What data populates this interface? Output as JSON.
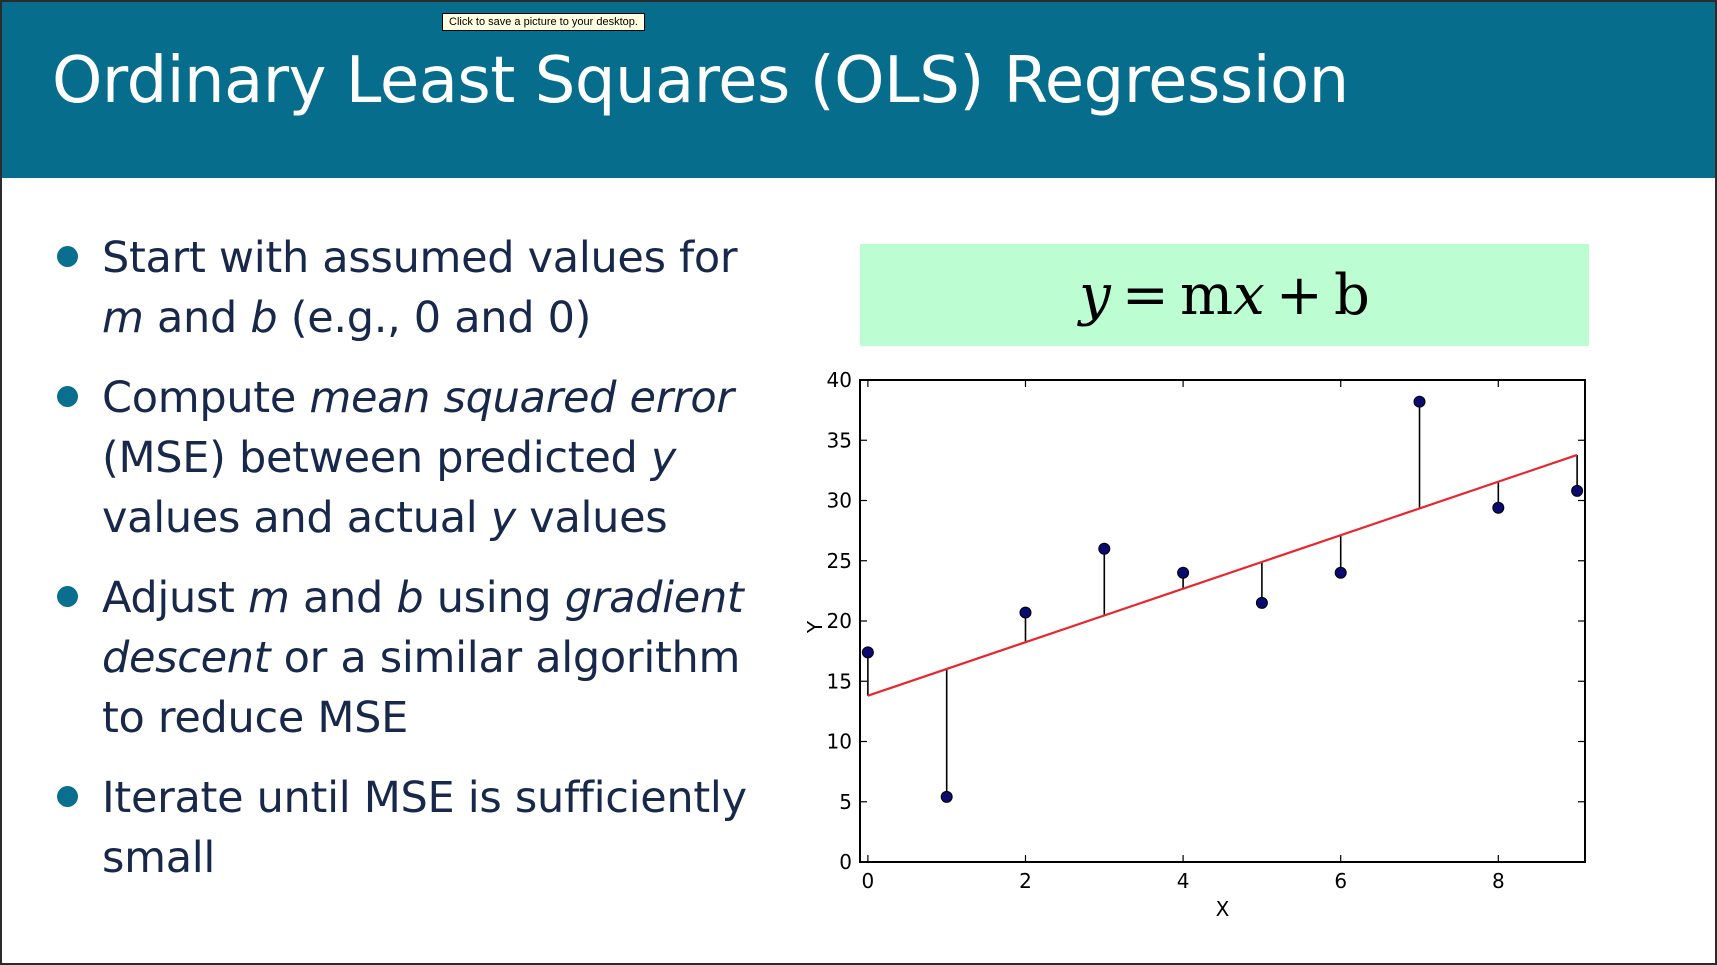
{
  "tooltip": "Click to save a picture to your desktop.",
  "slide": {
    "title": "Ordinary Least Squares (OLS) Regression",
    "formula": "y = mx + b",
    "bullets": [
      [
        {
          "t": "Start with assumed values for "
        },
        {
          "t": "m",
          "i": true
        },
        {
          "t": " and "
        },
        {
          "t": "b",
          "i": true
        },
        {
          "t": " (e.g., 0 and 0)"
        }
      ],
      [
        {
          "t": "Compute "
        },
        {
          "t": "mean squared error",
          "i": true
        },
        {
          "t": " (MSE) between predicted "
        },
        {
          "t": "y",
          "i": true
        },
        {
          "t": " values and actual "
        },
        {
          "t": "y",
          "i": true
        },
        {
          "t": " values"
        }
      ],
      [
        {
          "t": "Adjust "
        },
        {
          "t": "m",
          "i": true
        },
        {
          "t": " and "
        },
        {
          "t": "b",
          "i": true
        },
        {
          "t": " using "
        },
        {
          "t": "gradient descent",
          "i": true
        },
        {
          "t": " or a similar algorithm to reduce MSE"
        }
      ],
      [
        {
          "t": "Iterate until MSE is sufficiently small"
        }
      ]
    ]
  },
  "colors": {
    "title_bar": "#066d8c",
    "bullet": "#0a6f8e",
    "formula_bg": "#bcfdd2",
    "fit_line": "#e8262e",
    "points": "#0a0a70"
  },
  "chart_data": {
    "type": "scatter",
    "title": "",
    "xlabel": "X",
    "ylabel": "Y",
    "xlim": [
      -0.1,
      9.1
    ],
    "ylim": [
      0,
      40
    ],
    "xticks": [
      0,
      2,
      4,
      6,
      8
    ],
    "yticks": [
      0,
      5,
      10,
      15,
      20,
      25,
      30,
      35,
      40
    ],
    "grid": false,
    "series": [
      {
        "x": [
          0,
          1,
          2,
          3,
          4,
          5,
          6,
          7,
          8,
          9
        ],
        "y": [
          17.4,
          5.4,
          20.7,
          26.0,
          24.0,
          21.5,
          24.0,
          38.2,
          29.4,
          30.8
        ]
      }
    ],
    "fit_line": {
      "slope": 2.22,
      "intercept": 13.8,
      "x_range": [
        0,
        9
      ]
    },
    "residual_lines": true
  }
}
